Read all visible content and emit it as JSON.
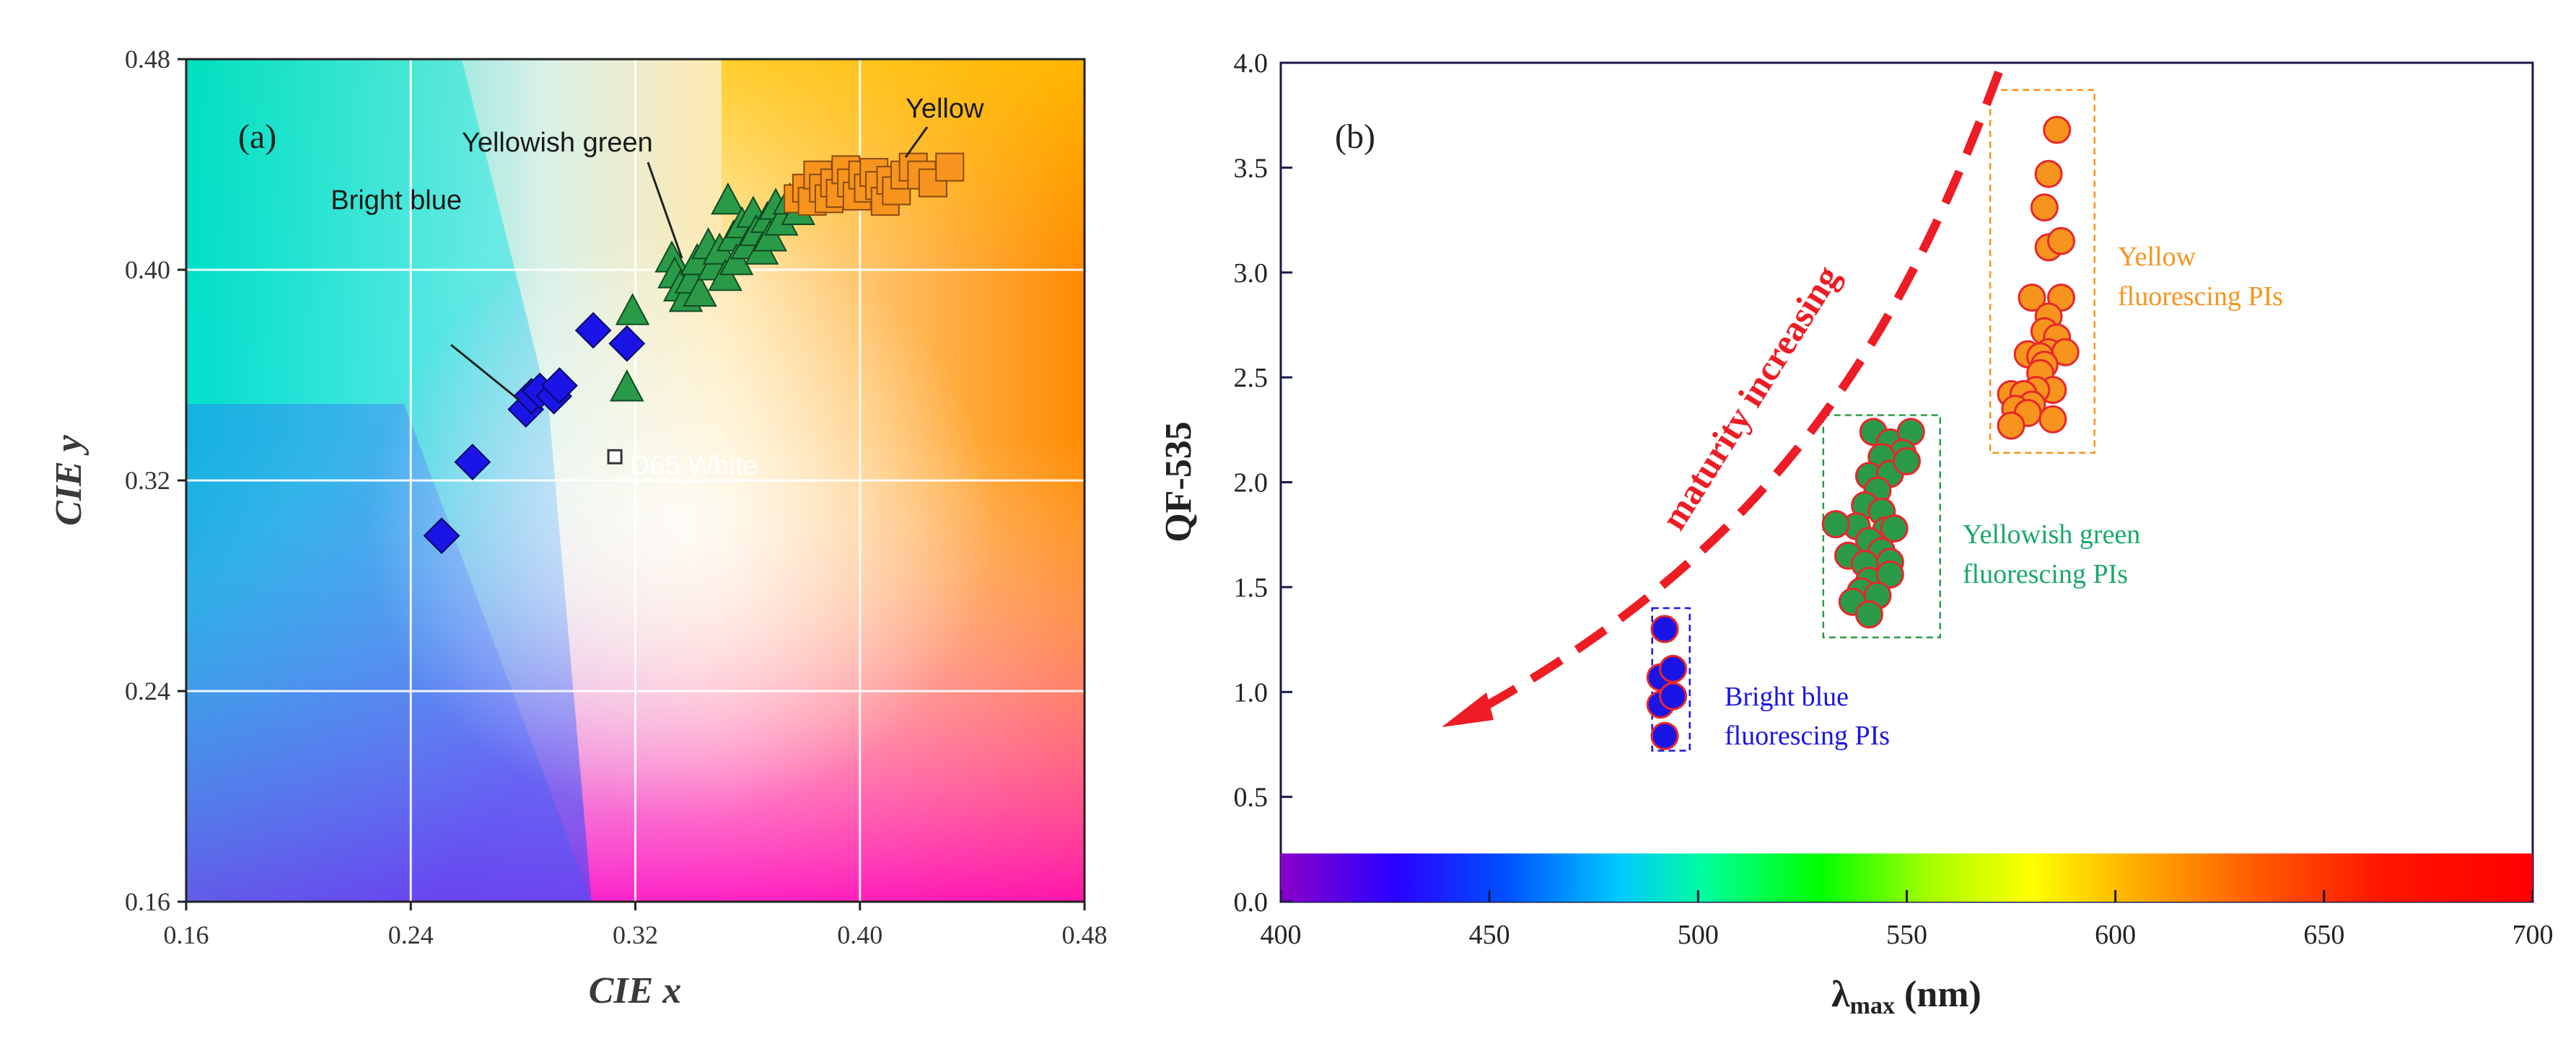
{
  "chart_data": [
    {
      "type": "scatter",
      "panel_label": "(a)",
      "xlabel": "CIE x",
      "ylabel": "CIE y",
      "xlim": [
        0.16,
        0.48
      ],
      "ylim": [
        0.16,
        0.48
      ],
      "xticks": [
        0.16,
        0.24,
        0.32,
        0.4,
        0.48
      ],
      "yticks": [
        0.16,
        0.24,
        0.32,
        0.4,
        0.48
      ],
      "tick_labels": [
        "0.16",
        "0.24",
        "0.32",
        "0.40",
        "0.48"
      ],
      "grid": true,
      "background": "CIE chromaticity color field",
      "series": [
        {
          "name": "Bright blue",
          "marker": "diamond",
          "color": "#1a14e6",
          "points": [
            [
              0.251,
              0.299
            ],
            [
              0.262,
              0.327
            ],
            [
              0.281,
              0.347
            ],
            [
              0.283,
              0.352
            ],
            [
              0.286,
              0.354
            ],
            [
              0.291,
              0.352
            ],
            [
              0.293,
              0.356
            ],
            [
              0.305,
              0.377
            ],
            [
              0.317,
              0.372
            ]
          ]
        },
        {
          "name": "Yellowish green",
          "marker": "triangle",
          "color": "#2a9a48",
          "points": [
            [
              0.317,
              0.355
            ],
            [
              0.319,
              0.384
            ],
            [
              0.333,
              0.404
            ],
            [
              0.334,
              0.398
            ],
            [
              0.336,
              0.393
            ],
            [
              0.338,
              0.389
            ],
            [
              0.34,
              0.396
            ],
            [
              0.342,
              0.403
            ],
            [
              0.343,
              0.391
            ],
            [
              0.346,
              0.409
            ],
            [
              0.348,
              0.401
            ],
            [
              0.35,
              0.407
            ],
            [
              0.352,
              0.397
            ],
            [
              0.353,
              0.426
            ],
            [
              0.355,
              0.412
            ],
            [
              0.356,
              0.403
            ],
            [
              0.358,
              0.417
            ],
            [
              0.36,
              0.409
            ],
            [
              0.362,
              0.421
            ],
            [
              0.363,
              0.414
            ],
            [
              0.365,
              0.407
            ],
            [
              0.367,
              0.419
            ],
            [
              0.368,
              0.412
            ],
            [
              0.37,
              0.424
            ],
            [
              0.372,
              0.418
            ],
            [
              0.375,
              0.426
            ],
            [
              0.378,
              0.422
            ]
          ]
        },
        {
          "name": "Yellow",
          "marker": "square",
          "color": "#f7941d",
          "points": [
            [
              0.378,
              0.427
            ],
            [
              0.381,
              0.431
            ],
            [
              0.383,
              0.426
            ],
            [
              0.385,
              0.436
            ],
            [
              0.387,
              0.431
            ],
            [
              0.389,
              0.427
            ],
            [
              0.391,
              0.433
            ],
            [
              0.393,
              0.429
            ],
            [
              0.395,
              0.438
            ],
            [
              0.397,
              0.433
            ],
            [
              0.399,
              0.428
            ],
            [
              0.401,
              0.436
            ],
            [
              0.403,
              0.431
            ],
            [
              0.405,
              0.437
            ],
            [
              0.407,
              0.432
            ],
            [
              0.409,
              0.426
            ],
            [
              0.411,
              0.434
            ],
            [
              0.413,
              0.43
            ],
            [
              0.416,
              0.436
            ],
            [
              0.419,
              0.439
            ],
            [
              0.422,
              0.436
            ],
            [
              0.426,
              0.433
            ],
            [
              0.432,
              0.439
            ]
          ]
        },
        {
          "name": "D65 White",
          "marker": "small-square",
          "color": "#ffffff",
          "points": [
            [
              0.3127,
              0.329
            ]
          ]
        }
      ],
      "annotations": [
        "Bright blue",
        "Yellowish green",
        "Yellow",
        "D65 White"
      ]
    },
    {
      "type": "scatter",
      "panel_label": "(b)",
      "xlabel_main": "λ",
      "xlabel_sub": "max",
      "xlabel_unit": " (nm)",
      "ylabel": "QF-535",
      "xlim": [
        400,
        700
      ],
      "ylim": [
        0.0,
        4.0
      ],
      "xticks": [
        400,
        450,
        500,
        550,
        600,
        650,
        700
      ],
      "xtick_labels": [
        "400",
        "450",
        "500",
        "550",
        "600",
        "650",
        "700"
      ],
      "yticks": [
        0.0,
        0.5,
        1.0,
        1.5,
        2.0,
        2.5,
        3.0,
        3.5,
        4.0
      ],
      "ytick_labels": [
        "0.0",
        "0.5",
        "1.0",
        "1.5",
        "2.0",
        "2.5",
        "3.0",
        "3.5",
        "4.0"
      ],
      "spectrum_bar": {
        "from": 400,
        "to": 700,
        "y_from": 0.0,
        "y_to": 0.23
      },
      "series": [
        {
          "name": "Bright blue fluorescing PIs",
          "label_lines": [
            "Bright blue",
            "fluorescing PIs"
          ],
          "color": "#1a14e6",
          "edge": "#e8262b",
          "points": [
            [
              492,
              1.3
            ],
            [
              491,
              1.07
            ],
            [
              494,
              1.11
            ],
            [
              491,
              0.94
            ],
            [
              494,
              0.98
            ],
            [
              492,
              0.79
            ]
          ],
          "box": [
            489,
            498,
            0.72,
            1.4
          ]
        },
        {
          "name": "Yellowish green fluorescing PIs",
          "label_lines": [
            "Yellowish green",
            "fluorescing PIs"
          ],
          "color": "#2a9a48",
          "edge": "#e8262b",
          "points": [
            [
              542,
              2.24
            ],
            [
              546,
              2.19
            ],
            [
              551,
              2.24
            ],
            [
              549,
              2.14
            ],
            [
              544,
              2.12
            ],
            [
              541,
              2.03
            ],
            [
              546,
              2.04
            ],
            [
              550,
              2.1
            ],
            [
              543,
              1.96
            ],
            [
              540,
              1.89
            ],
            [
              544,
              1.86
            ],
            [
              538,
              1.79
            ],
            [
              533,
              1.8
            ],
            [
              545,
              1.77
            ],
            [
              541,
              1.72
            ],
            [
              547,
              1.78
            ],
            [
              544,
              1.67
            ],
            [
              536,
              1.65
            ],
            [
              540,
              1.61
            ],
            [
              546,
              1.62
            ],
            [
              541,
              1.53
            ],
            [
              546,
              1.56
            ],
            [
              539,
              1.48
            ],
            [
              543,
              1.46
            ],
            [
              537,
              1.43
            ],
            [
              541,
              1.37
            ]
          ],
          "box": [
            530,
            558,
            1.26,
            2.32
          ]
        },
        {
          "name": "Yellow fluorescing PIs",
          "label_lines": [
            "Yellow",
            "fluorescing PIs"
          ],
          "color": "#f7941d",
          "edge": "#e8262b",
          "points": [
            [
              586,
              3.68
            ],
            [
              584,
              3.47
            ],
            [
              583,
              3.31
            ],
            [
              584,
              3.12
            ],
            [
              587,
              3.15
            ],
            [
              580,
              2.88
            ],
            [
              587,
              2.88
            ],
            [
              584,
              2.79
            ],
            [
              583,
              2.72
            ],
            [
              586,
              2.69
            ],
            [
              579,
              2.61
            ],
            [
              584,
              2.62
            ],
            [
              588,
              2.62
            ],
            [
              582,
              2.6
            ],
            [
              583,
              2.56
            ],
            [
              582,
              2.52
            ],
            [
              585,
              2.44
            ],
            [
              581,
              2.44
            ],
            [
              575,
              2.42
            ],
            [
              578,
              2.42
            ],
            [
              580,
              2.37
            ],
            [
              576,
              2.35
            ],
            [
              579,
              2.33
            ],
            [
              585,
              2.3
            ],
            [
              575,
              2.27
            ]
          ],
          "box": [
            570,
            595,
            2.14,
            3.87
          ]
        }
      ],
      "arrow_label": "maturity increasing"
    }
  ]
}
